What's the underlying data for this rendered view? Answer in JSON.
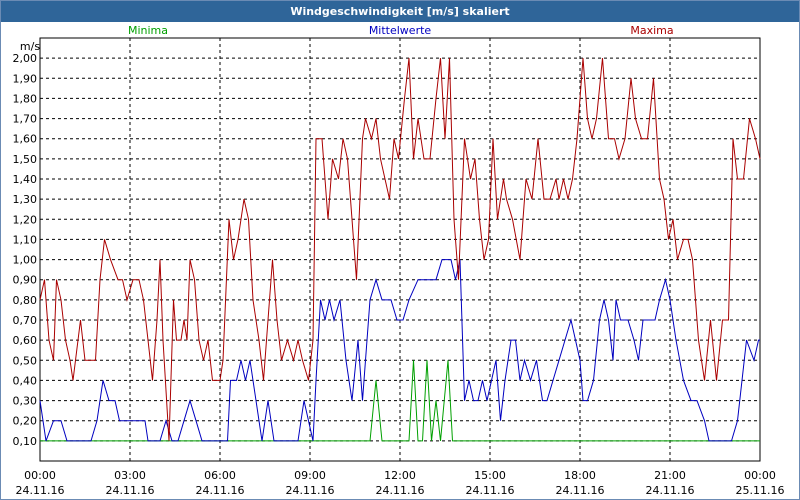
{
  "window": {
    "title": "Windgeschwindigkeit [m/s] skaliert"
  },
  "colors": {
    "minima": "#00a000",
    "mittelwerte": "#0000c0",
    "maxima": "#aa0000",
    "titlebar": "#2f6599"
  },
  "chart_data": {
    "type": "line",
    "title": "Windgeschwindigkeit [m/s] skaliert",
    "ylabel": "m/s",
    "ylim": [
      0,
      2.1
    ],
    "xlim_hours": [
      0,
      24
    ],
    "grid": true,
    "legend_placement": "top",
    "y_ticks": [
      "0,10",
      "0,20",
      "0,30",
      "0,40",
      "0,50",
      "0,60",
      "0,70",
      "0,80",
      "0,90",
      "1,00",
      "1,10",
      "1,20",
      "1,30",
      "1,40",
      "1,50",
      "1,60",
      "1,70",
      "1,80",
      "1,90",
      "2,00"
    ],
    "x_ticks": [
      {
        "time": "00:00",
        "date": "24.11.16"
      },
      {
        "time": "03:00",
        "date": "24.11.16"
      },
      {
        "time": "06:00",
        "date": "24.11.16"
      },
      {
        "time": "09:00",
        "date": "24.11.16"
      },
      {
        "time": "12:00",
        "date": "24.11.16"
      },
      {
        "time": "15:00",
        "date": "24.11.16"
      },
      {
        "time": "18:00",
        "date": "24.11.16"
      },
      {
        "time": "21:00",
        "date": "24.11.16"
      },
      {
        "time": "00:00",
        "date": "25.11.16"
      }
    ],
    "series": [
      {
        "name": "Minima",
        "color": "#00a000",
        "points": [
          [
            0,
            0.1
          ],
          [
            11.0,
            0.1
          ],
          [
            11.2,
            0.4
          ],
          [
            11.4,
            0.1
          ],
          [
            12.3,
            0.1
          ],
          [
            12.45,
            0.5
          ],
          [
            12.6,
            0.1
          ],
          [
            12.75,
            0.1
          ],
          [
            12.9,
            0.5
          ],
          [
            13.05,
            0.1
          ],
          [
            13.2,
            0.3
          ],
          [
            13.35,
            0.1
          ],
          [
            13.6,
            0.5
          ],
          [
            13.75,
            0.1
          ],
          [
            24,
            0.1
          ]
        ]
      },
      {
        "name": "Mittelwerte",
        "color": "#0000c0",
        "points": [
          [
            0,
            0.3
          ],
          [
            0.2,
            0.1
          ],
          [
            0.45,
            0.2
          ],
          [
            0.7,
            0.2
          ],
          [
            0.9,
            0.1
          ],
          [
            1.7,
            0.1
          ],
          [
            1.9,
            0.2
          ],
          [
            2.1,
            0.4
          ],
          [
            2.3,
            0.3
          ],
          [
            2.5,
            0.3
          ],
          [
            2.65,
            0.2
          ],
          [
            3.5,
            0.2
          ],
          [
            3.6,
            0.1
          ],
          [
            3.7,
            0.1
          ],
          [
            3.8,
            0.1
          ],
          [
            4.0,
            0.1
          ],
          [
            4.2,
            0.2
          ],
          [
            4.4,
            0.1
          ],
          [
            4.6,
            0.1
          ],
          [
            4.8,
            0.2
          ],
          [
            5.0,
            0.3
          ],
          [
            5.2,
            0.2
          ],
          [
            5.4,
            0.1
          ],
          [
            6.25,
            0.1
          ],
          [
            6.35,
            0.4
          ],
          [
            6.55,
            0.4
          ],
          [
            6.7,
            0.5
          ],
          [
            6.85,
            0.4
          ],
          [
            7.0,
            0.5
          ],
          [
            7.2,
            0.3
          ],
          [
            7.4,
            0.1
          ],
          [
            7.6,
            0.3
          ],
          [
            7.8,
            0.1
          ],
          [
            8.6,
            0.1
          ],
          [
            8.8,
            0.3
          ],
          [
            9.1,
            0.1
          ],
          [
            9.2,
            0.4
          ],
          [
            9.35,
            0.8
          ],
          [
            9.5,
            0.7
          ],
          [
            9.65,
            0.8
          ],
          [
            9.8,
            0.7
          ],
          [
            10.0,
            0.8
          ],
          [
            10.2,
            0.5
          ],
          [
            10.4,
            0.3
          ],
          [
            10.6,
            0.6
          ],
          [
            10.75,
            0.3
          ],
          [
            10.9,
            0.6
          ],
          [
            11.0,
            0.8
          ],
          [
            11.2,
            0.9
          ],
          [
            11.4,
            0.8
          ],
          [
            11.7,
            0.8
          ],
          [
            11.9,
            0.7
          ],
          [
            12.1,
            0.7
          ],
          [
            12.3,
            0.8
          ],
          [
            12.6,
            0.9
          ],
          [
            13.2,
            0.9
          ],
          [
            13.4,
            1.0
          ],
          [
            13.7,
            1.0
          ],
          [
            13.85,
            0.9
          ],
          [
            14.0,
            1.0
          ],
          [
            14.15,
            0.3
          ],
          [
            14.3,
            0.4
          ],
          [
            14.45,
            0.3
          ],
          [
            14.6,
            0.3
          ],
          [
            14.75,
            0.4
          ],
          [
            14.9,
            0.3
          ],
          [
            15.05,
            0.4
          ],
          [
            15.2,
            0.5
          ],
          [
            15.35,
            0.2
          ],
          [
            15.5,
            0.4
          ],
          [
            15.7,
            0.6
          ],
          [
            15.85,
            0.6
          ],
          [
            16.0,
            0.4
          ],
          [
            16.15,
            0.5
          ],
          [
            16.35,
            0.4
          ],
          [
            16.55,
            0.5
          ],
          [
            16.75,
            0.3
          ],
          [
            16.9,
            0.3
          ],
          [
            17.1,
            0.4
          ],
          [
            17.3,
            0.5
          ],
          [
            17.5,
            0.6
          ],
          [
            17.7,
            0.7
          ],
          [
            17.85,
            0.6
          ],
          [
            18.0,
            0.5
          ],
          [
            18.1,
            0.3
          ],
          [
            18.25,
            0.3
          ],
          [
            18.45,
            0.4
          ],
          [
            18.65,
            0.7
          ],
          [
            18.8,
            0.8
          ],
          [
            18.95,
            0.7
          ],
          [
            19.1,
            0.5
          ],
          [
            19.2,
            0.8
          ],
          [
            19.35,
            0.7
          ],
          [
            19.6,
            0.7
          ],
          [
            19.8,
            0.6
          ],
          [
            19.95,
            0.5
          ],
          [
            20.1,
            0.7
          ],
          [
            20.3,
            0.7
          ],
          [
            20.5,
            0.7
          ],
          [
            20.65,
            0.8
          ],
          [
            20.85,
            0.9
          ],
          [
            21.0,
            0.8
          ],
          [
            21.2,
            0.6
          ],
          [
            21.45,
            0.4
          ],
          [
            21.7,
            0.3
          ],
          [
            21.9,
            0.3
          ],
          [
            22.15,
            0.2
          ],
          [
            22.3,
            0.1
          ],
          [
            23.05,
            0.1
          ],
          [
            23.25,
            0.2
          ],
          [
            23.4,
            0.4
          ],
          [
            23.55,
            0.6
          ],
          [
            23.8,
            0.5
          ],
          [
            23.95,
            0.6
          ],
          [
            24.0,
            0.6
          ]
        ]
      },
      {
        "name": "Maxima",
        "color": "#aa0000",
        "points": [
          [
            0,
            0.8
          ],
          [
            0.15,
            0.9
          ],
          [
            0.3,
            0.6
          ],
          [
            0.45,
            0.5
          ],
          [
            0.55,
            0.9
          ],
          [
            0.7,
            0.8
          ],
          [
            0.85,
            0.6
          ],
          [
            1.0,
            0.5
          ],
          [
            1.1,
            0.4
          ],
          [
            1.35,
            0.7
          ],
          [
            1.5,
            0.5
          ],
          [
            1.7,
            0.5
          ],
          [
            1.85,
            0.5
          ],
          [
            2.0,
            0.9
          ],
          [
            2.15,
            1.1
          ],
          [
            2.35,
            1.0
          ],
          [
            2.6,
            0.9
          ],
          [
            2.75,
            0.9
          ],
          [
            2.9,
            0.8
          ],
          [
            3.1,
            0.9
          ],
          [
            3.3,
            0.9
          ],
          [
            3.45,
            0.8
          ],
          [
            3.6,
            0.6
          ],
          [
            3.75,
            0.4
          ],
          [
            3.9,
            0.7
          ],
          [
            4.0,
            1.0
          ],
          [
            4.1,
            0.6
          ],
          [
            4.3,
            0.1
          ],
          [
            4.45,
            0.8
          ],
          [
            4.55,
            0.6
          ],
          [
            4.7,
            0.6
          ],
          [
            4.8,
            0.7
          ],
          [
            4.9,
            0.6
          ],
          [
            5.0,
            1.0
          ],
          [
            5.15,
            0.9
          ],
          [
            5.3,
            0.6
          ],
          [
            5.45,
            0.5
          ],
          [
            5.6,
            0.6
          ],
          [
            5.75,
            0.4
          ],
          [
            5.9,
            0.4
          ],
          [
            6.0,
            0.4
          ],
          [
            6.1,
            0.5
          ],
          [
            6.3,
            1.2
          ],
          [
            6.45,
            1.0
          ],
          [
            6.6,
            1.1
          ],
          [
            6.8,
            1.3
          ],
          [
            6.95,
            1.2
          ],
          [
            7.1,
            0.8
          ],
          [
            7.3,
            0.6
          ],
          [
            7.45,
            0.4
          ],
          [
            7.6,
            0.7
          ],
          [
            7.75,
            1.0
          ],
          [
            7.9,
            0.7
          ],
          [
            8.05,
            0.5
          ],
          [
            8.25,
            0.6
          ],
          [
            8.45,
            0.5
          ],
          [
            8.6,
            0.6
          ],
          [
            8.75,
            0.5
          ],
          [
            8.95,
            0.4
          ],
          [
            9.1,
            0.6
          ],
          [
            9.2,
            1.6
          ],
          [
            9.4,
            1.6
          ],
          [
            9.6,
            1.2
          ],
          [
            9.75,
            1.5
          ],
          [
            9.95,
            1.4
          ],
          [
            10.1,
            1.6
          ],
          [
            10.25,
            1.5
          ],
          [
            10.4,
            1.2
          ],
          [
            10.55,
            0.9
          ],
          [
            10.75,
            1.6
          ],
          [
            10.85,
            1.7
          ],
          [
            11.05,
            1.6
          ],
          [
            11.2,
            1.7
          ],
          [
            11.35,
            1.5
          ],
          [
            11.5,
            1.4
          ],
          [
            11.65,
            1.3
          ],
          [
            11.8,
            1.6
          ],
          [
            11.95,
            1.5
          ],
          [
            12.15,
            1.8
          ],
          [
            12.3,
            2.0
          ],
          [
            12.45,
            1.5
          ],
          [
            12.6,
            1.7
          ],
          [
            12.8,
            1.5
          ],
          [
            13.0,
            1.5
          ],
          [
            13.2,
            1.8
          ],
          [
            13.35,
            2.0
          ],
          [
            13.5,
            1.6
          ],
          [
            13.65,
            2.0
          ],
          [
            13.8,
            1.2
          ],
          [
            13.95,
            0.9
          ],
          [
            14.15,
            1.6
          ],
          [
            14.35,
            1.4
          ],
          [
            14.5,
            1.5
          ],
          [
            14.65,
            1.2
          ],
          [
            14.8,
            1.0
          ],
          [
            14.95,
            1.1
          ],
          [
            15.1,
            1.6
          ],
          [
            15.25,
            1.2
          ],
          [
            15.45,
            1.4
          ],
          [
            15.55,
            1.3
          ],
          [
            15.75,
            1.2
          ],
          [
            16.0,
            1.0
          ],
          [
            16.2,
            1.4
          ],
          [
            16.4,
            1.3
          ],
          [
            16.6,
            1.6
          ],
          [
            16.8,
            1.3
          ],
          [
            17.0,
            1.3
          ],
          [
            17.2,
            1.4
          ],
          [
            17.3,
            1.3
          ],
          [
            17.45,
            1.4
          ],
          [
            17.6,
            1.3
          ],
          [
            17.75,
            1.4
          ],
          [
            17.9,
            1.6
          ],
          [
            18.1,
            2.0
          ],
          [
            18.25,
            1.7
          ],
          [
            18.4,
            1.6
          ],
          [
            18.55,
            1.7
          ],
          [
            18.75,
            2.0
          ],
          [
            18.95,
            1.6
          ],
          [
            19.15,
            1.6
          ],
          [
            19.3,
            1.5
          ],
          [
            19.5,
            1.6
          ],
          [
            19.7,
            1.9
          ],
          [
            19.85,
            1.7
          ],
          [
            20.05,
            1.6
          ],
          [
            20.25,
            1.6
          ],
          [
            20.45,
            1.9
          ],
          [
            20.65,
            1.4
          ],
          [
            20.8,
            1.3
          ],
          [
            20.95,
            1.1
          ],
          [
            21.1,
            1.2
          ],
          [
            21.25,
            1.0
          ],
          [
            21.45,
            1.1
          ],
          [
            21.6,
            1.1
          ],
          [
            21.75,
            1.0
          ],
          [
            21.95,
            0.6
          ],
          [
            22.15,
            0.4
          ],
          [
            22.35,
            0.7
          ],
          [
            22.55,
            0.4
          ],
          [
            22.75,
            0.7
          ],
          [
            22.95,
            0.7
          ],
          [
            23.1,
            1.6
          ],
          [
            23.25,
            1.4
          ],
          [
            23.45,
            1.4
          ],
          [
            23.65,
            1.7
          ],
          [
            23.85,
            1.6
          ],
          [
            24.0,
            1.5
          ]
        ]
      }
    ]
  }
}
